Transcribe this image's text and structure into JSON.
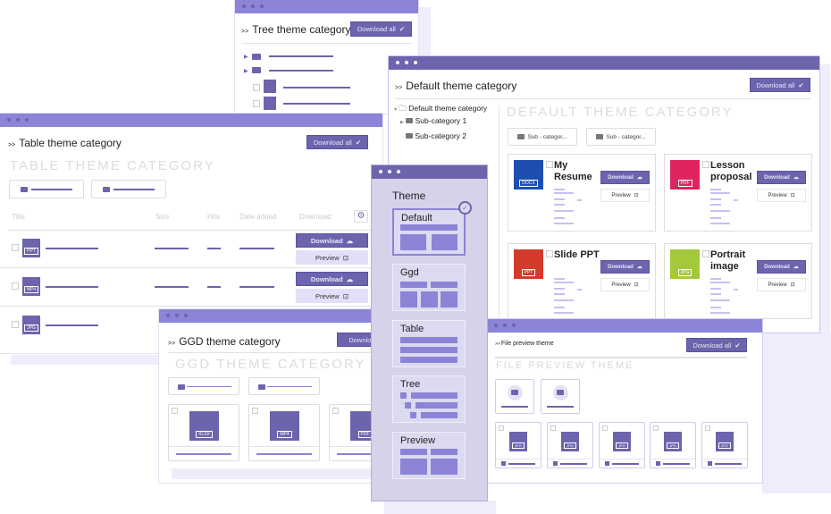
{
  "colors": {
    "accent": "#6c64ad",
    "bar": "#8b84d7",
    "panel": "#d5d2ea"
  },
  "tree_window": {
    "title": "Tree theme category",
    "download_all": "Download all"
  },
  "table_window": {
    "title": "Table theme category",
    "download_all": "Download all",
    "heading": "TABLE THEME CATEGORY",
    "columns": [
      "Title",
      "Size",
      "Hits",
      "Date added",
      "Download"
    ],
    "rows": [
      {
        "icon": "PPT",
        "download": "Download",
        "preview": "Preview"
      },
      {
        "icon": "MP4",
        "download": "Download",
        "preview": "Preview"
      },
      {
        "icon": "JPG"
      }
    ]
  },
  "default_window": {
    "title": "Default theme category",
    "download_all": "Download all",
    "heading": "DEFAULT THEME CATEGORY",
    "tree": [
      "Default theme category",
      "Sub-category 1",
      "Sub-category 2"
    ],
    "subcategories": [
      "Sub - categor...",
      "Sub - categor..."
    ],
    "files": [
      {
        "name": "My Resume",
        "type": "DOCX",
        "color": "#1e4fb0",
        "download": "Download",
        "preview": "Preview"
      },
      {
        "name": "Lesson proposal",
        "type": "PDF",
        "color": "#e0245e",
        "download": "Download",
        "preview": "Preview"
      },
      {
        "name": "Slide PPT",
        "type": "PPT",
        "color": "#d23a2a",
        "download": "Download",
        "preview": "Preview"
      },
      {
        "name": "Portrait image",
        "type": "JPG",
        "color": "#a3c93a",
        "download": "Download",
        "preview": "Preview"
      }
    ]
  },
  "theme_panel": {
    "title": "Theme",
    "items": [
      "Default",
      "Ggd",
      "Table",
      "Tree",
      "Preview"
    ],
    "selected": "Default"
  },
  "ggd_window": {
    "title": "GGD theme category",
    "download_all": "Download",
    "heading": "GGD THEME CATEGORY",
    "files": [
      "XLSX",
      "MP4",
      "PDF"
    ]
  },
  "preview_window": {
    "title": "File preview theme",
    "download_all": "Download all",
    "heading": "FILE PREVIEW THEME",
    "file_type": "JPG"
  }
}
